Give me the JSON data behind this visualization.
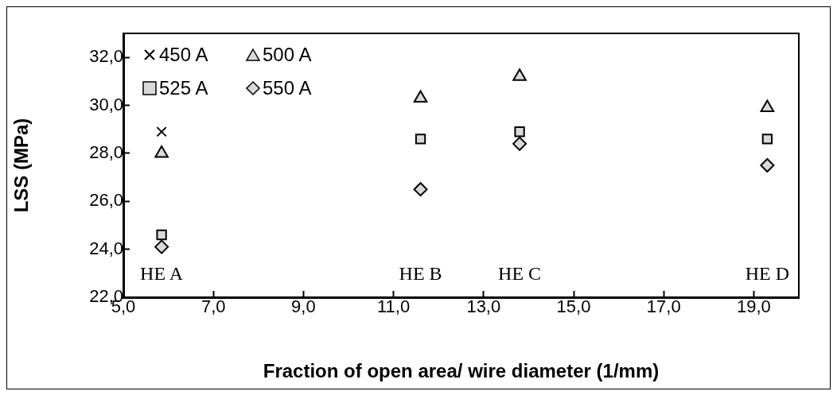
{
  "chart_data": {
    "type": "scatter",
    "xlabel": "Fraction of open area/ wire diameter (1/mm)",
    "ylabel": "LSS (MPa)",
    "x": [
      5.85,
      11.6,
      13.8,
      19.3
    ],
    "series": [
      {
        "name": "450 A",
        "color": "#000000",
        "marker": "cross",
        "values": [
          28.9,
          null,
          null,
          null
        ]
      },
      {
        "name": "500 A",
        "color": "#d9d9d9",
        "marker": "triangle",
        "values": [
          28.0,
          30.3,
          31.2,
          29.9
        ]
      },
      {
        "name": "525 A",
        "color": "#d9d9d9",
        "marker": "square",
        "values": [
          24.6,
          28.6,
          28.9,
          28.6
        ]
      },
      {
        "name": "550 A",
        "color": "#d9d9d9",
        "marker": "diamond",
        "values": [
          24.1,
          26.5,
          28.4,
          27.5
        ]
      }
    ],
    "xlim": [
      5,
      20
    ],
    "xticks": [
      {
        "value": 5,
        "label": "5,0"
      },
      {
        "value": 7,
        "label": "7,0"
      },
      {
        "value": 9,
        "label": "9,0"
      },
      {
        "value": 11,
        "label": "11,0"
      },
      {
        "value": 13,
        "label": "13,0"
      },
      {
        "value": 15,
        "label": "15,0"
      },
      {
        "value": 17,
        "label": "17,0"
      },
      {
        "value": 19,
        "label": "19,0"
      }
    ],
    "ylim": [
      22,
      33
    ],
    "yticks": [
      {
        "value": 22,
        "label": "22,0"
      },
      {
        "value": 24,
        "label": "24,0"
      },
      {
        "value": 26,
        "label": "26,0"
      },
      {
        "value": 28,
        "label": "28,0"
      },
      {
        "value": 30,
        "label": "30,0"
      },
      {
        "value": 32,
        "label": "32,0"
      }
    ],
    "annotations": [
      "HE A",
      "HE B",
      "HE C",
      "HE D"
    ],
    "grid": false,
    "legend": "top left"
  }
}
